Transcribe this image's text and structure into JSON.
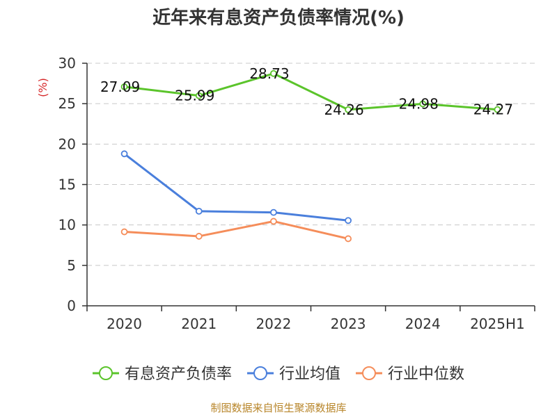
{
  "chart_data": {
    "type": "line",
    "title": "近年来有息资产负债率情况(%)",
    "unit_label": "(%)",
    "categories": [
      "2020",
      "2021",
      "2022",
      "2023",
      "2024",
      "2025H1"
    ],
    "ylim": [
      0,
      30
    ],
    "yticks": [
      "0",
      "5",
      "10",
      "15",
      "20",
      "25",
      "30"
    ],
    "grid": true,
    "legend_position": "bottom",
    "series": [
      {
        "name": "有息资产负债率",
        "color": "#5bc42b",
        "values": [
          27.09,
          25.99,
          28.73,
          24.26,
          24.98,
          24.27
        ],
        "labels": [
          "27.09",
          "25.99",
          "28.73",
          "24.26",
          "24.98",
          "24.27"
        ]
      },
      {
        "name": "行业均值",
        "color": "#4a7fdc",
        "values": [
          18.8,
          11.7,
          11.55,
          10.55,
          null,
          null
        ],
        "labels": []
      },
      {
        "name": "行业中位数",
        "color": "#f58d5a",
        "values": [
          9.15,
          8.6,
          10.45,
          8.3,
          null,
          null
        ],
        "labels": []
      }
    ]
  },
  "footer": {
    "source": "制图数据来自恒生聚源数据库"
  }
}
